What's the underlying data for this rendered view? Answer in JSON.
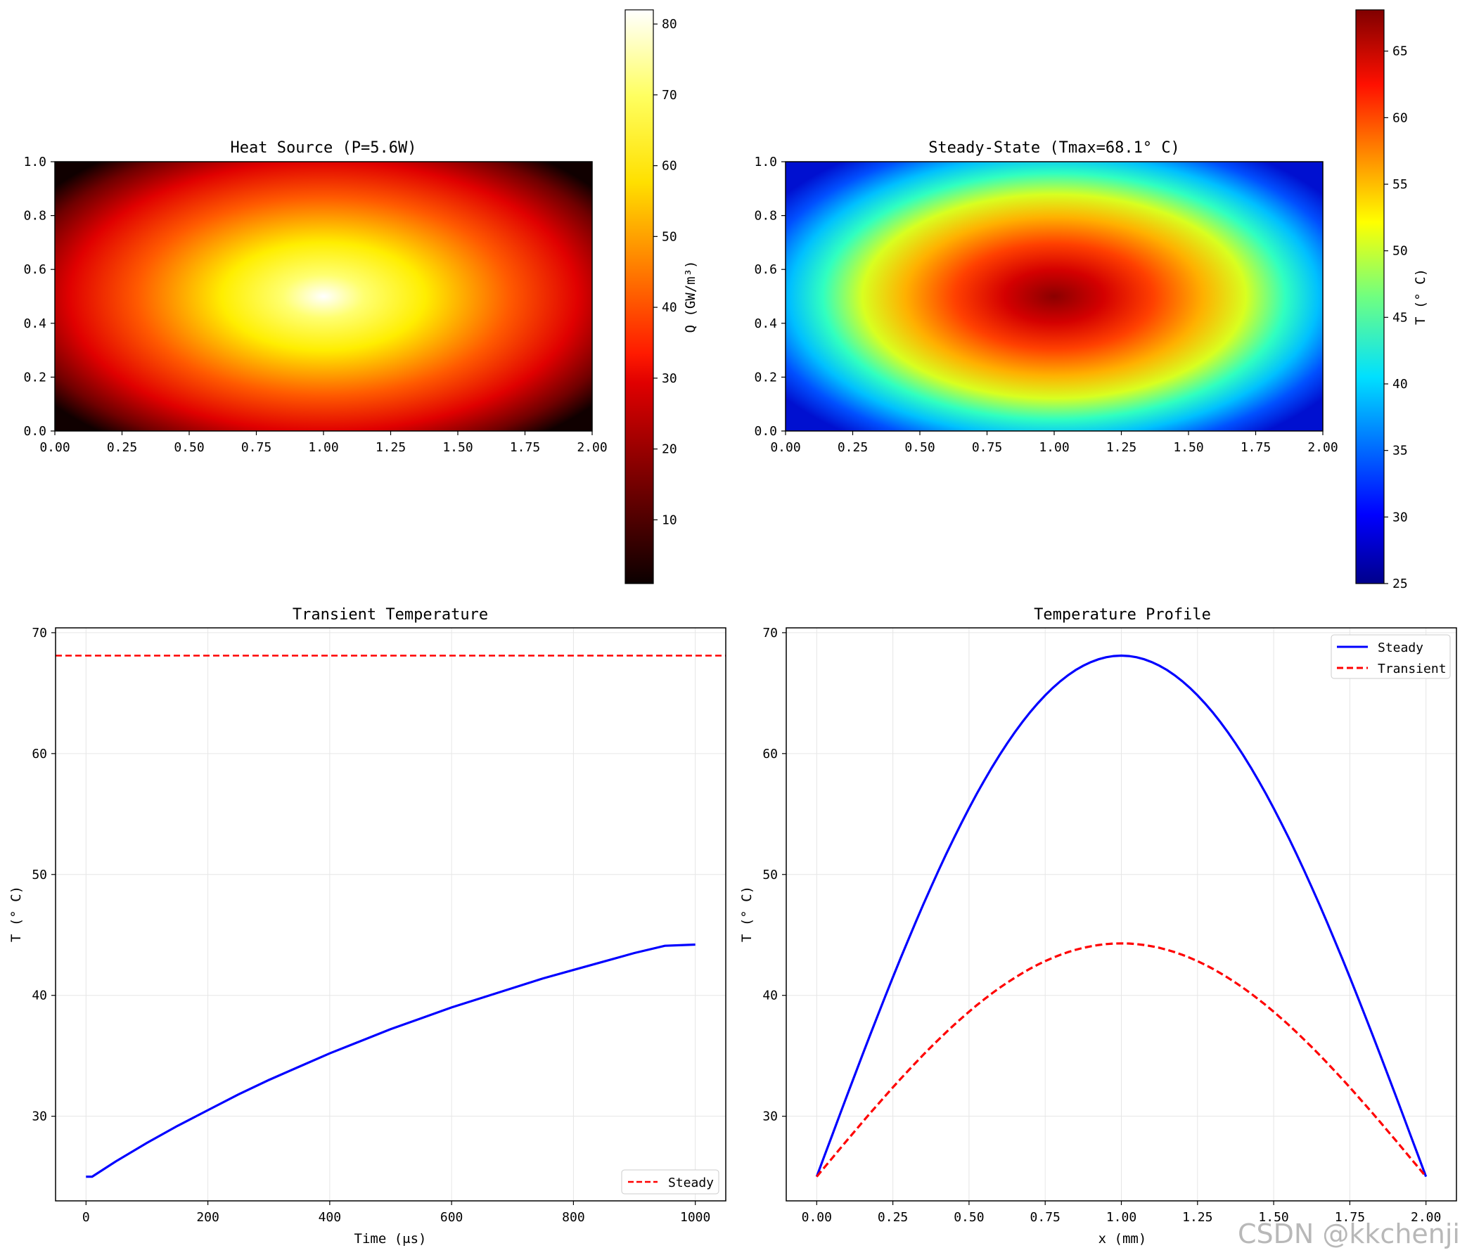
{
  "watermark": "CSDN @kkchenji",
  "chart_data": [
    {
      "id": "heat-source",
      "type": "heatmap",
      "title": "Heat Source (P=5.6W)",
      "xlabel": "",
      "ylabel": "",
      "xlim": [
        0,
        2
      ],
      "ylim": [
        0,
        1
      ],
      "xticks": [
        "0.00",
        "0.25",
        "0.50",
        "0.75",
        "1.00",
        "1.25",
        "1.50",
        "1.75",
        "2.00"
      ],
      "yticks": [
        "0.0",
        "0.2",
        "0.4",
        "0.6",
        "0.8",
        "1.0"
      ],
      "colormap": "hot",
      "peak": {
        "x": 1.0,
        "y": 0.5,
        "value": 82
      },
      "colorbar": {
        "label": "Q (GW/m³)",
        "range": [
          1,
          82
        ],
        "ticks": [
          "10",
          "20",
          "30",
          "40",
          "50",
          "60",
          "70",
          "80"
        ]
      }
    },
    {
      "id": "steady-state",
      "type": "heatmap",
      "title": "Steady-State (Tmax=68.1° C)",
      "xlabel": "",
      "ylabel": "",
      "xlim": [
        0,
        2
      ],
      "ylim": [
        0,
        1
      ],
      "xticks": [
        "0.00",
        "0.25",
        "0.50",
        "0.75",
        "1.00",
        "1.25",
        "1.50",
        "1.75",
        "2.00"
      ],
      "yticks": [
        "0.0",
        "0.2",
        "0.4",
        "0.6",
        "0.8",
        "1.0"
      ],
      "colormap": "jet",
      "peak": {
        "x": 1.0,
        "y": 0.5,
        "value": 68.1
      },
      "colorbar": {
        "label": "T (° C)",
        "range": [
          25,
          68.1
        ],
        "ticks": [
          "25",
          "30",
          "35",
          "40",
          "45",
          "50",
          "55",
          "60",
          "65"
        ]
      }
    },
    {
      "id": "transient",
      "type": "line",
      "title": "Transient Temperature",
      "xlabel": "Time (μs)",
      "ylabel": "T (° C)",
      "xlim": [
        -50,
        1050
      ],
      "ylim": [
        23,
        70.4
      ],
      "xticks": [
        "0",
        "200",
        "400",
        "600",
        "800",
        "1000"
      ],
      "yticks": [
        "30",
        "40",
        "50",
        "60",
        "70"
      ],
      "grid": true,
      "legend": {
        "position": "lower-right",
        "entries": [
          "Steady"
        ]
      },
      "series": [
        {
          "name": "Transient",
          "color": "#0000ff",
          "style": "solid",
          "x": [
            0,
            10,
            50,
            100,
            150,
            200,
            250,
            300,
            350,
            400,
            450,
            500,
            550,
            600,
            650,
            700,
            750,
            800,
            850,
            900,
            950,
            1000
          ],
          "y": [
            25.0,
            25.0,
            26.3,
            27.8,
            29.2,
            30.5,
            31.8,
            33.0,
            34.1,
            35.2,
            36.2,
            37.2,
            38.1,
            39.0,
            39.8,
            40.6,
            41.4,
            42.1,
            42.8,
            43.5,
            44.1,
            44.2
          ]
        },
        {
          "name": "Steady",
          "color": "#ff0000",
          "style": "dashed",
          "constant": 68.1
        }
      ]
    },
    {
      "id": "profile",
      "type": "line",
      "title": "Temperature Profile",
      "xlabel": "x (mm)",
      "ylabel": "T (° C)",
      "xlim": [
        -0.1,
        2.1
      ],
      "ylim": [
        23,
        70.4
      ],
      "xticks": [
        "0.00",
        "0.25",
        "0.50",
        "0.75",
        "1.00",
        "1.25",
        "1.50",
        "1.75",
        "2.00"
      ],
      "yticks": [
        "30",
        "40",
        "50",
        "60",
        "70"
      ],
      "grid": true,
      "legend": {
        "position": "top-right",
        "entries": [
          "Steady",
          "Transient"
        ]
      },
      "series": [
        {
          "name": "Steady",
          "color": "#0000ff",
          "style": "solid",
          "shape": "sine",
          "base": 25,
          "peak": 68.1
        },
        {
          "name": "Transient",
          "color": "#ff0000",
          "style": "dashed",
          "shape": "sine",
          "base": 25,
          "peak": 44.3
        }
      ]
    }
  ]
}
